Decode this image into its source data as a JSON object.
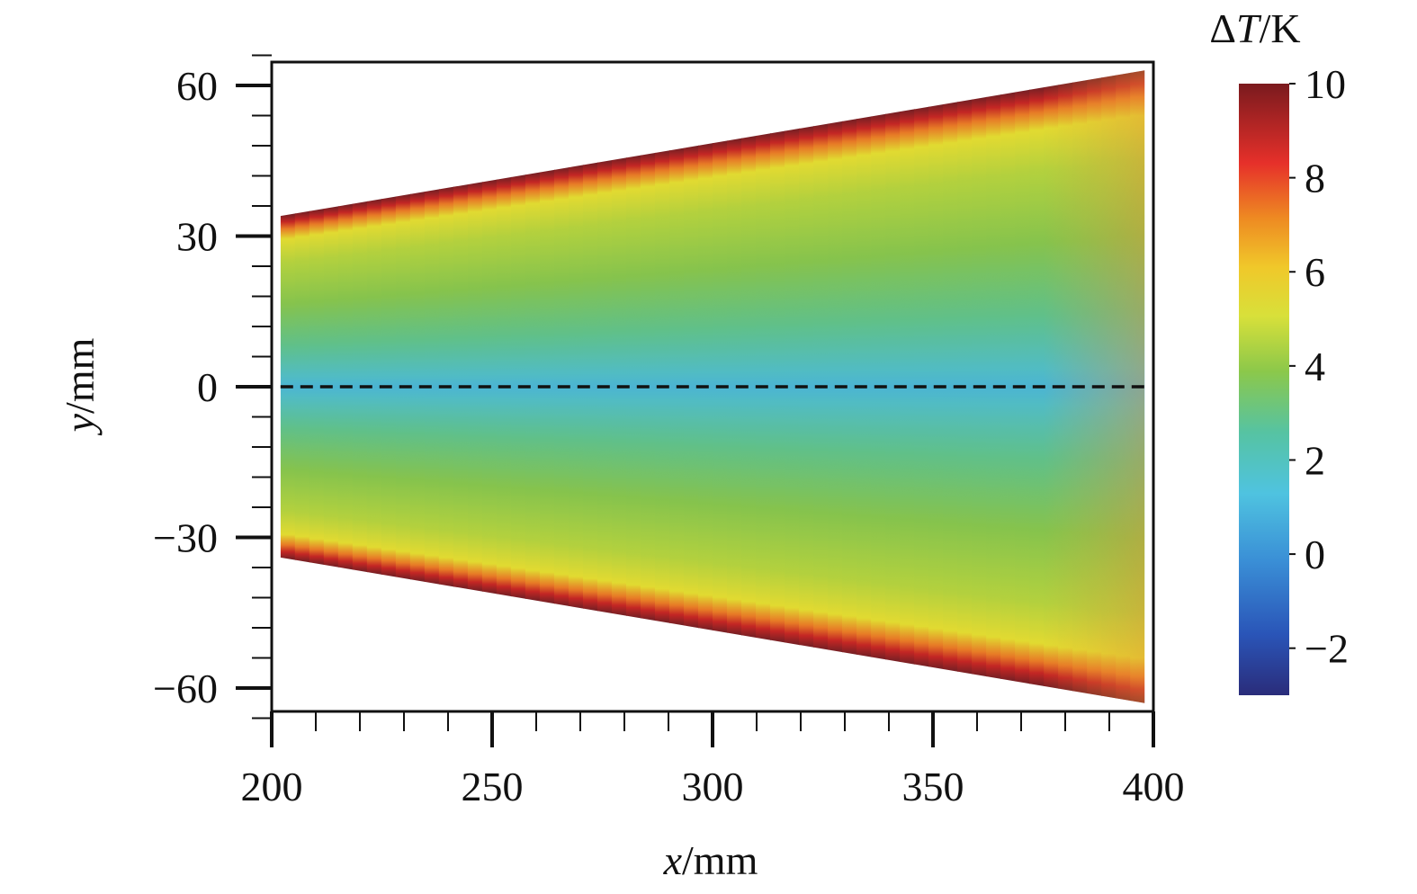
{
  "chart_data": {
    "type": "heatmap",
    "title": "",
    "xlabel_var": "x",
    "xlabel_unit": "/mm",
    "ylabel_var": "y",
    "ylabel_unit": "/mm",
    "xlim": [
      200,
      400
    ],
    "ylim": [
      -66,
      66
    ],
    "xticks": [
      200,
      250,
      300,
      350,
      400
    ],
    "xtick_labels": [
      "200",
      "250",
      "300",
      "350",
      "400"
    ],
    "yticks": [
      60,
      30,
      0,
      -30,
      -60
    ],
    "ytick_labels": [
      "60",
      "30",
      "0",
      "−30",
      "−60"
    ],
    "colorbar": {
      "label_prefix": "Δ",
      "label_var": "T",
      "label_unit": "/K",
      "range": [
        -3,
        10
      ],
      "ticks": [
        10,
        8,
        6,
        4,
        2,
        0,
        -2
      ],
      "tick_labels": [
        "10",
        "8",
        "6",
        "4",
        "2",
        "0",
        "−2"
      ],
      "colormap": "jet"
    },
    "field": {
      "description_shape": "wedge (delta wing) widening with x",
      "edge_half_width_start": 34,
      "edge_half_width_end": 63,
      "x_start": 202,
      "x_end": 398,
      "edge_deltaT": 10,
      "near_edge_deltaT": 5,
      "interior_deltaT": 3,
      "centerline_deltaT": 1.5,
      "trailing_edge_deltaT": 6
    },
    "centerline": {
      "y": 0,
      "style": "dashed"
    },
    "grid": false,
    "legend": "none"
  }
}
